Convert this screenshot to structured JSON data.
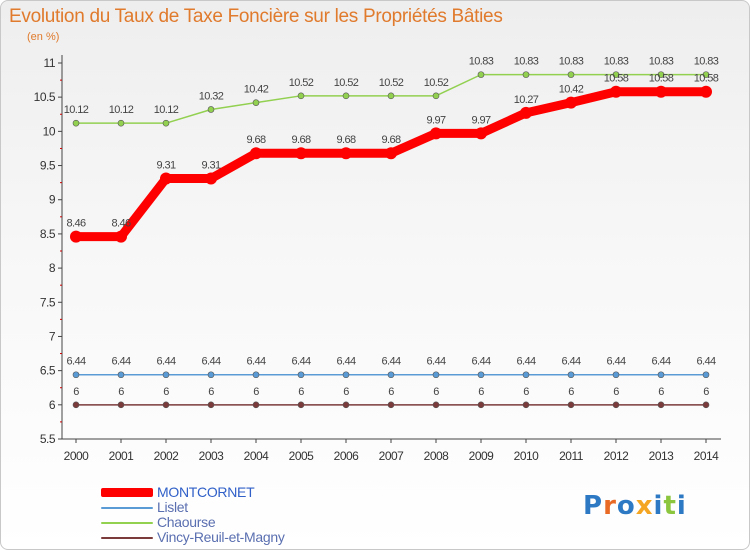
{
  "chart_data": {
    "type": "line",
    "title": "Evolution du Taux de Taxe Foncière sur les Propriétés Bâties",
    "subtitle": "(en %)",
    "x": [
      "2000",
      "2001",
      "2002",
      "2003",
      "2004",
      "2005",
      "2006",
      "2007",
      "2008",
      "2009",
      "2010",
      "2011",
      "2012",
      "2013",
      "2014"
    ],
    "ylim": [
      5.5,
      11
    ],
    "yticks": [
      "5.5",
      "6",
      "6.5",
      "7",
      "7.5",
      "8",
      "8.5",
      "9",
      "9.5",
      "10",
      "10.5",
      "11"
    ],
    "grid": false,
    "legend": "bottom-left",
    "series": [
      {
        "name": "MONTCORNET",
        "color": "#ff0000",
        "values": [
          8.46,
          8.46,
          9.31,
          9.31,
          9.68,
          9.68,
          9.68,
          9.68,
          9.97,
          9.97,
          10.27,
          10.42,
          10.58,
          10.58,
          10.58
        ],
        "labels": [
          "8.46",
          "8.46",
          "9.31",
          "9.31",
          "9.68",
          "9.68",
          "9.68",
          "9.68",
          "9.97",
          "9.97",
          "10.27",
          "10.42",
          "10.58",
          "10.58",
          "10.58"
        ]
      },
      {
        "name": "Lislet",
        "color": "#5b9bd5",
        "values": [
          6.44,
          6.44,
          6.44,
          6.44,
          6.44,
          6.44,
          6.44,
          6.44,
          6.44,
          6.44,
          6.44,
          6.44,
          6.44,
          6.44,
          6.44
        ],
        "labels": [
          "6.44",
          "6.44",
          "6.44",
          "6.44",
          "6.44",
          "6.44",
          "6.44",
          "6.44",
          "6.44",
          "6.44",
          "6.44",
          "6.44",
          "6.44",
          "6.44",
          "6.44"
        ]
      },
      {
        "name": "Chaourse",
        "color": "#92d050",
        "values": [
          10.12,
          10.12,
          10.12,
          10.32,
          10.42,
          10.52,
          10.52,
          10.52,
          10.52,
          10.83,
          10.83,
          10.83,
          10.83,
          10.83,
          10.83
        ],
        "labels": [
          "10.12",
          "10.12",
          "10.12",
          "10.32",
          "10.42",
          "10.52",
          "10.52",
          "10.52",
          "10.52",
          "10.83",
          "10.83",
          "10.83",
          "10.83",
          "10.83",
          "10.83"
        ]
      },
      {
        "name": "Vincy-Reuil-et-Magny",
        "color": "#7b3b3b",
        "values": [
          6,
          6,
          6,
          6,
          6,
          6,
          6,
          6,
          6,
          6,
          6,
          6,
          6,
          6,
          6
        ],
        "labels": [
          "6",
          "6",
          "6",
          "6",
          "6",
          "6",
          "6",
          "6",
          "6",
          "6",
          "6",
          "6",
          "6",
          "6",
          "6"
        ]
      }
    ]
  },
  "logo": {
    "text": [
      "P",
      "r",
      "o",
      "x",
      "i",
      "t",
      "i"
    ]
  }
}
